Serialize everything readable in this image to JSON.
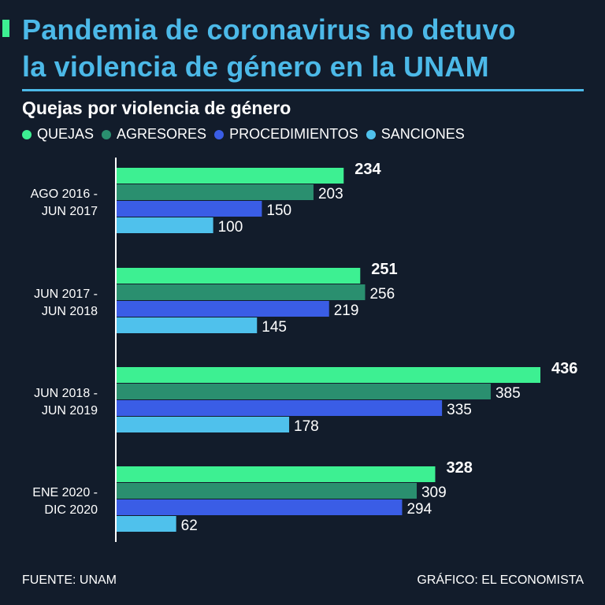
{
  "title": "Pandemia de coronavirus no detuvo la violencia de género en la UNAM",
  "title_lines": [
    "Pandemia de coronavirus no detuvo",
    "la violencia de género en la UNAM"
  ],
  "footer": {
    "source": "FUENTE: UNAM",
    "credit": "GRÁFICO: EL ECONOMISTA"
  },
  "chart_data": {
    "type": "bar",
    "orientation": "horizontal",
    "title": "Quejas por violencia de género",
    "categories": [
      [
        "AGO 2016 -",
        "JUN 2017"
      ],
      [
        "JUN 2017 -",
        "JUN 2018"
      ],
      [
        "JUN 2018 -",
        "JUN 2019"
      ],
      [
        "ENE 2020 -",
        "DIC 2020"
      ]
    ],
    "series": [
      {
        "name": "QUEJAS",
        "color": "#3df092",
        "values": [
          234,
          251,
          436,
          328
        ],
        "bold_labels": true
      },
      {
        "name": "AGRESORES",
        "color": "#2a8f6f",
        "values": [
          203,
          256,
          385,
          309
        ]
      },
      {
        "name": "PROCEDIMIENTOS",
        "color": "#3a5de6",
        "values": [
          150,
          219,
          335,
          294
        ]
      },
      {
        "name": "SANCIONES",
        "color": "#4fc1ec",
        "values": [
          100,
          145,
          178,
          62
        ]
      }
    ],
    "xlim": [
      0,
      436
    ],
    "grid": false,
    "legend_position": "top-left"
  }
}
